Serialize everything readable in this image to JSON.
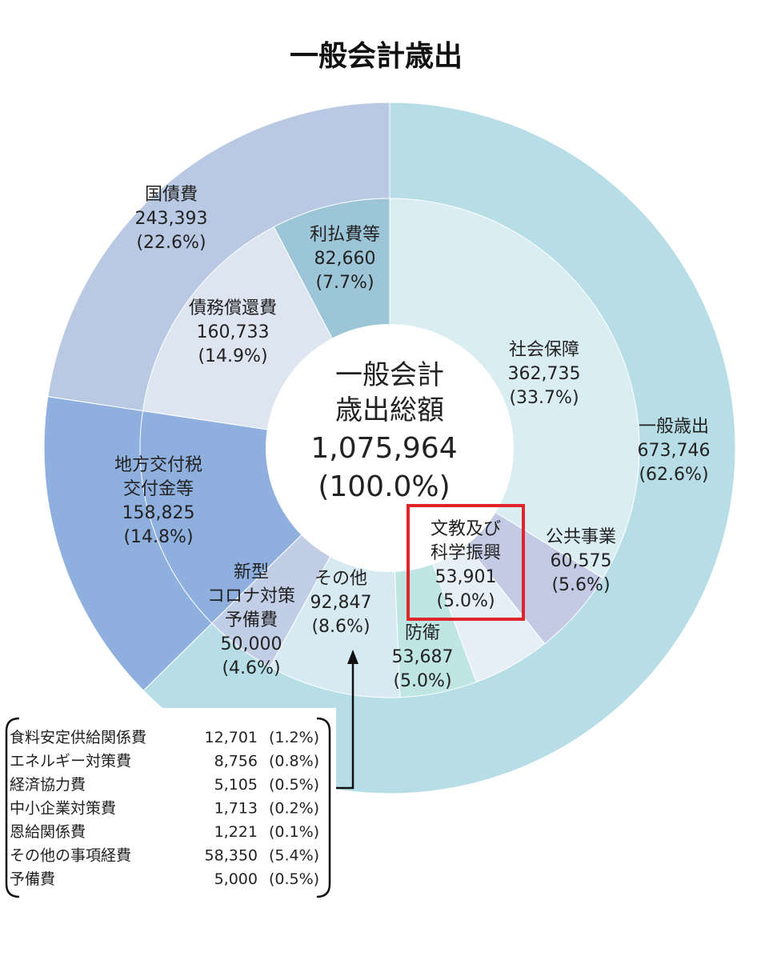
{
  "chart_data": {
    "type": "pie",
    "title": "一般会計歳出",
    "center": {
      "line1": "一般会計",
      "line2": "歳出総額",
      "value": "1,075,964",
      "percent": "(100.0%)"
    },
    "outer_ring": [
      {
        "name": "一般歳出",
        "value": 673746,
        "value_label": "673,746",
        "percent": "(62.6%)",
        "color": "#b7dde6"
      },
      {
        "name": "地方交付税交付金等",
        "name_lines": [
          "地方交付税",
          "交付金等"
        ],
        "value": 158825,
        "value_label": "158,825",
        "percent": "(14.8%)",
        "color": "#8fb0df"
      },
      {
        "name": "国債費",
        "value": 243393,
        "value_label": "243,393",
        "percent": "(22.6%)",
        "color": "#b9c9e3"
      }
    ],
    "inner_ring": [
      {
        "name": "社会保障",
        "value": 362735,
        "value_label": "362,735",
        "percent": "(33.7%)",
        "color": "#daedf3"
      },
      {
        "name": "公共事業",
        "value": 60575,
        "value_label": "60,575",
        "percent": "(5.6%)",
        "color": "#c3cae4"
      },
      {
        "name": "文教及び科学振興",
        "name_lines": [
          "文教及び",
          "科学振興"
        ],
        "value": 53901,
        "value_label": "53,901",
        "percent": "(5.0%)",
        "color": "#e6eef6",
        "highlighted": true
      },
      {
        "name": "防衛",
        "value": 53687,
        "value_label": "53,687",
        "percent": "(5.0%)",
        "color": "#bfe6e2"
      },
      {
        "name": "その他",
        "value": 92847,
        "value_label": "92,847",
        "percent": "(8.6%)",
        "color": "#d7eaf2"
      },
      {
        "name": "新型コロナ対策予備費",
        "name_lines": [
          "新型",
          "コロナ対策",
          "予備費"
        ],
        "value": 50000,
        "value_label": "50,000",
        "percent": "(4.6%)",
        "color": "#c2cee6"
      },
      {
        "name": "地方交付税交付金等",
        "value": 158825,
        "color": "#8fb0df",
        "label_on_outer": true
      },
      {
        "name": "債務償還費",
        "value": 160733,
        "value_label": "160,733",
        "percent": "(14.9%)",
        "color": "#dde5f1"
      },
      {
        "name": "利払費等",
        "value": 82660,
        "value_label": "82,660",
        "percent": "(7.7%)",
        "color": "#9dc5d8"
      }
    ],
    "breakdown_of": "その他",
    "breakdown": [
      {
        "name": "食料安定供給関係費",
        "value": "12,701",
        "percent": "(1.2%)"
      },
      {
        "name": "エネルギー対策費",
        "value": "8,756",
        "percent": "(0.8%)"
      },
      {
        "name": "経済協力費",
        "value": "5,105",
        "percent": "(0.5%)"
      },
      {
        "name": "中小企業対策費",
        "value": "1,713",
        "percent": "(0.2%)"
      },
      {
        "name": "恩給関係費",
        "value": "1,221",
        "percent": "(0.1%)"
      },
      {
        "name": "その他の事項経費",
        "value": "58,350",
        "percent": "(5.4%)"
      },
      {
        "name": "予備費",
        "value": "5,000",
        "percent": "(0.5%)"
      }
    ],
    "highlight_color": "#e0242b"
  }
}
